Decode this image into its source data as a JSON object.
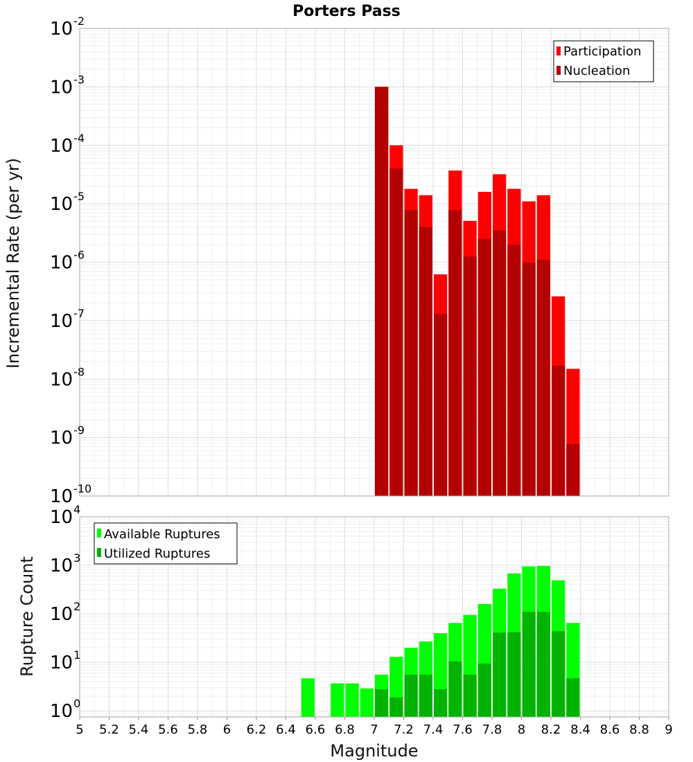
{
  "chart_data": [
    {
      "type": "bar",
      "title": "Porters Pass",
      "xlabel": "",
      "ylabel": "Incremental Rate (per yr)",
      "yscale": "log",
      "ylim": [
        1e-10,
        0.01
      ],
      "xlim": [
        5,
        9
      ],
      "bin_width": 0.1,
      "grid": true,
      "legend_position": "top-right",
      "y_ticks": [
        {
          "base": "10",
          "exp": "-10"
        },
        {
          "base": "10",
          "exp": "-9"
        },
        {
          "base": "10",
          "exp": "-8"
        },
        {
          "base": "10",
          "exp": "-7"
        },
        {
          "base": "10",
          "exp": "-6"
        },
        {
          "base": "10",
          "exp": "-5"
        },
        {
          "base": "10",
          "exp": "-4"
        },
        {
          "base": "10",
          "exp": "-3"
        },
        {
          "base": "10",
          "exp": "-2"
        }
      ],
      "x": [
        7.05,
        7.15,
        7.25,
        7.35,
        7.45,
        7.55,
        7.65,
        7.75,
        7.85,
        7.95,
        8.05,
        8.15,
        8.25,
        8.35
      ],
      "series": [
        {
          "name": "Participation",
          "color": "#ff0000",
          "values": [
            0.001,
            0.0001,
            1.8e-05,
            1.4e-05,
            6.2e-07,
            3.7e-05,
            5.1e-06,
            1.6e-05,
            3.2e-05,
            1.8e-05,
            1.1e-05,
            1.4e-05,
            2.6e-07,
            1.5e-08
          ]
        },
        {
          "name": "Nucleation",
          "color": "#b30000",
          "values": [
            0.001,
            4e-05,
            7.8e-06,
            4e-06,
            1.3e-07,
            7.8e-06,
            1.25e-06,
            2.5e-06,
            3.5e-06,
            2e-06,
            9.8e-07,
            1.1e-06,
            1.7e-08,
            7.8e-10
          ]
        }
      ]
    },
    {
      "type": "bar",
      "title": "",
      "xlabel": "Magnitude",
      "ylabel": "Rupture Count",
      "yscale": "log",
      "ylim": [
        0.75,
        10000
      ],
      "xlim": [
        5,
        9
      ],
      "bin_width": 0.1,
      "grid": true,
      "legend_position": "top-left",
      "x_tick_labels": [
        "5",
        "5.2",
        "5.4",
        "5.6",
        "5.8",
        "6",
        "6.2",
        "6.4",
        "6.6",
        "6.8",
        "7",
        "7.2",
        "7.4",
        "7.6",
        "7.8",
        "8",
        "8.2",
        "8.4",
        "8.6",
        "8.8",
        "9"
      ],
      "y_ticks": [
        {
          "base": "10",
          "exp": "0"
        },
        {
          "base": "10",
          "exp": "1"
        },
        {
          "base": "10",
          "exp": "2"
        },
        {
          "base": "10",
          "exp": "3"
        },
        {
          "base": "10",
          "exp": "4"
        }
      ],
      "x": [
        6.55,
        6.75,
        6.85,
        6.95,
        7.05,
        7.15,
        7.25,
        7.35,
        7.45,
        7.55,
        7.65,
        7.75,
        7.85,
        7.95,
        8.05,
        8.15,
        8.25,
        8.35
      ],
      "series": [
        {
          "name": "Available Ruptures",
          "color": "#00ff00",
          "values": [
            4.7,
            3.7,
            3.7,
            2.9,
            5.6,
            13,
            20,
            27,
            40,
            65,
            95,
            160,
            330,
            680,
            950,
            970,
            490,
            65
          ]
        },
        {
          "name": "Utilized Ruptures",
          "color": "#00b300",
          "values": [
            0,
            0,
            0,
            0,
            2.8,
            1.9,
            5.6,
            5.6,
            2.8,
            10.5,
            5.6,
            9.5,
            41,
            42,
            110,
            110,
            44,
            4.7
          ]
        }
      ]
    }
  ]
}
